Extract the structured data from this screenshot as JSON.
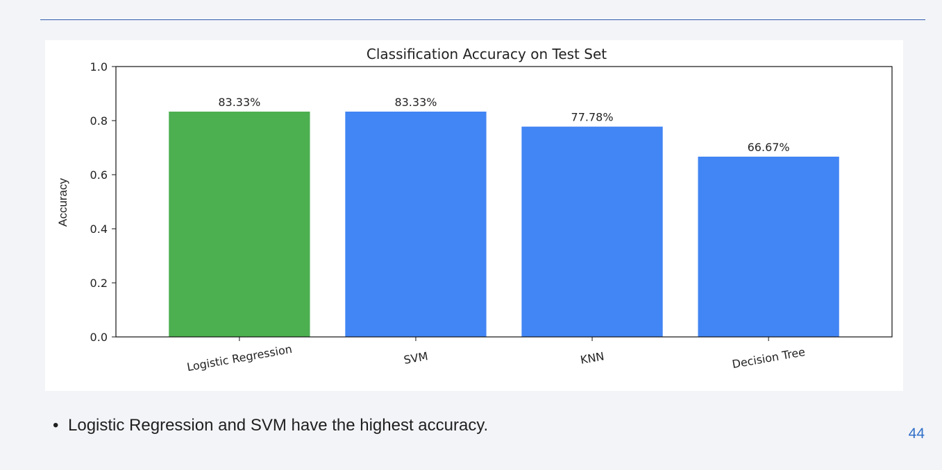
{
  "slide": {
    "bullet_text": "Logistic Regression and SVM have the highest accuracy.",
    "page_number": "44"
  },
  "chart_data": {
    "type": "bar",
    "title": "Classification Accuracy on Test Set",
    "xlabel": "",
    "ylabel": "Accuracy",
    "ylim": [
      0,
      1.0
    ],
    "yticks": [
      "0.0",
      "0.2",
      "0.4",
      "0.6",
      "0.8",
      "1.0"
    ],
    "categories": [
      "Logistic Regression",
      "SVM",
      "KNN",
      "Decision Tree"
    ],
    "values": [
      0.8333,
      0.8333,
      0.7778,
      0.6667
    ],
    "data_labels": [
      "83.33%",
      "83.33%",
      "77.78%",
      "66.67%"
    ],
    "bar_colors": [
      "#4caf50",
      "#4285f4",
      "#4285f4",
      "#4285f4"
    ],
    "grid": false,
    "legend": "none"
  }
}
